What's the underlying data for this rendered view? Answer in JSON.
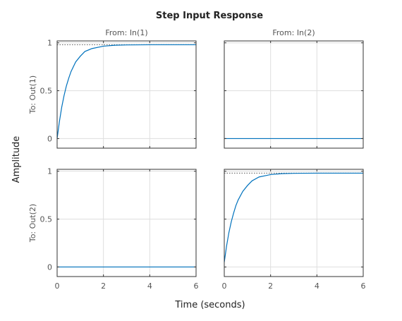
{
  "chart_data": {
    "type": "line",
    "title": "Step Input Response",
    "xlabel": "Time (seconds)",
    "ylabel": "Amplitude",
    "column_headers": [
      "From: In(1)",
      "From: In(2)"
    ],
    "row_headers": [
      "To: Out(1)",
      "To: Out(2)"
    ],
    "xlim": [
      0,
      6
    ],
    "xticks": [
      0,
      2,
      4,
      6
    ],
    "ylim": [
      -0.1,
      1.02
    ],
    "yticks": [
      0,
      0.5,
      1
    ],
    "ytick_labels": [
      "0",
      "0.5",
      "1"
    ],
    "grid": true,
    "line_color": "#0072BD",
    "steady_state_color": "#555555",
    "panels": [
      {
        "row": 0,
        "col": 0,
        "x": [
          0,
          0.1,
          0.2,
          0.3,
          0.4,
          0.5,
          0.6,
          0.8,
          1.0,
          1.2,
          1.5,
          2.0,
          2.5,
          3.0,
          4.0,
          5.0,
          6.0
        ],
        "y": [
          0,
          0.18,
          0.33,
          0.45,
          0.55,
          0.63,
          0.7,
          0.8,
          0.86,
          0.91,
          0.94,
          0.965,
          0.975,
          0.978,
          0.98,
          0.98,
          0.98
        ],
        "steady_state": 0.98
      },
      {
        "row": 0,
        "col": 1,
        "x": [
          0,
          6
        ],
        "y": [
          0,
          0
        ],
        "steady_state": null
      },
      {
        "row": 1,
        "col": 0,
        "x": [
          0,
          6
        ],
        "y": [
          0,
          0
        ],
        "steady_state": null
      },
      {
        "row": 1,
        "col": 1,
        "x": [
          0,
          0.1,
          0.2,
          0.3,
          0.4,
          0.5,
          0.6,
          0.8,
          1.0,
          1.2,
          1.5,
          2.0,
          2.5,
          3.0,
          4.0,
          5.0,
          6.0
        ],
        "y": [
          0.05,
          0.22,
          0.36,
          0.47,
          0.56,
          0.64,
          0.7,
          0.79,
          0.85,
          0.9,
          0.94,
          0.965,
          0.975,
          0.978,
          0.98,
          0.98,
          0.98
        ],
        "steady_state": 0.98
      }
    ]
  }
}
